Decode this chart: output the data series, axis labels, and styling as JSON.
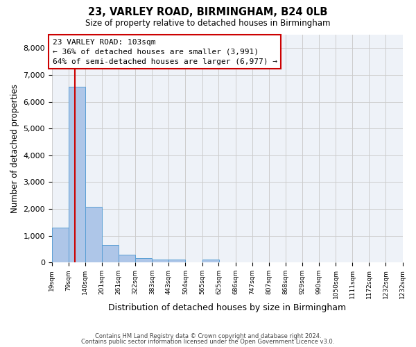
{
  "title": "23, VARLEY ROAD, BIRMINGHAM, B24 0LB",
  "subtitle": "Size of property relative to detached houses in Birmingham",
  "xlabel": "Distribution of detached houses by size in Birmingham",
  "ylabel": "Number of detached properties",
  "bar_labels": [
    "19sqm",
    "79sqm",
    "140sqm",
    "201sqm",
    "261sqm",
    "322sqm",
    "383sqm",
    "443sqm",
    "504sqm",
    "565sqm",
    "625sqm",
    "686sqm",
    "747sqm",
    "807sqm",
    "868sqm",
    "929sqm",
    "990sqm",
    "1050sqm",
    "1111sqm",
    "1172sqm",
    "1232sqm"
  ],
  "bar_values": [
    1300,
    6560,
    2080,
    650,
    300,
    150,
    100,
    100,
    0,
    100,
    0,
    0,
    0,
    0,
    0,
    0,
    0,
    0,
    0,
    0,
    0
  ],
  "bar_color": "#aec6e8",
  "bar_edgecolor": "#5a9fd4",
  "vline_x": 103,
  "vline_color": "#cc0000",
  "annotation_title": "23 VARLEY ROAD: 103sqm",
  "annotation_line1": "← 36% of detached houses are smaller (3,991)",
  "annotation_line2": "64% of semi-detached houses are larger (6,977) →",
  "annotation_box_color": "#ffffff",
  "annotation_box_edgecolor": "#cc0000",
  "ylim": [
    0,
    8500
  ],
  "yticks": [
    0,
    1000,
    2000,
    3000,
    4000,
    5000,
    6000,
    7000,
    8000
  ],
  "grid_color": "#cccccc",
  "background_color": "#eef2f8",
  "footer1": "Contains HM Land Registry data © Crown copyright and database right 2024.",
  "footer2": "Contains public sector information licensed under the Open Government Licence v3.0.",
  "bin_edges": [
    19,
    79,
    140,
    201,
    261,
    322,
    383,
    443,
    504,
    565,
    625,
    686,
    747,
    807,
    868,
    929,
    990,
    1050,
    1111,
    1172,
    1232
  ],
  "bin_width": 61
}
